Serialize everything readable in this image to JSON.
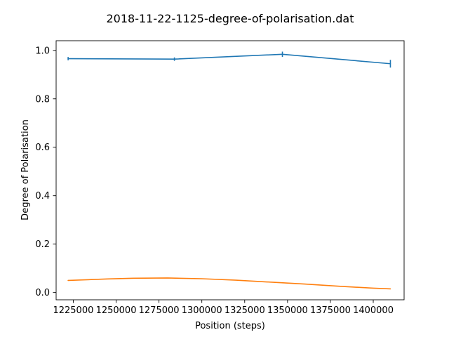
{
  "chart_data": {
    "type": "line",
    "title": "2018-11-22-1125-degree-of-polarisation.dat",
    "xlabel": "Position (steps)",
    "ylabel": "Degree of Polarisation",
    "xlim": [
      1215000,
      1418000
    ],
    "ylim": [
      -0.03,
      1.04
    ],
    "xticks": [
      1225000,
      1250000,
      1275000,
      1300000,
      1325000,
      1350000,
      1375000,
      1400000
    ],
    "xtick_labels": [
      "1225000",
      "1250000",
      "1275000",
      "1300000",
      "1325000",
      "1350000",
      "1375000",
      "1400000"
    ],
    "yticks": [
      0.0,
      0.2,
      0.4,
      0.6,
      0.8,
      1.0
    ],
    "ytick_labels": [
      "0.0",
      "0.2",
      "0.4",
      "0.6",
      "0.8",
      "1.0"
    ],
    "grid": false,
    "legend": null,
    "series": [
      {
        "color": "#1f77b4",
        "style": "line-with-errorbars",
        "x": [
          1222000,
          1284000,
          1347000,
          1410000
        ],
        "y": [
          0.966,
          0.964,
          0.984,
          0.945
        ],
        "yerr": [
          0.007,
          0.007,
          0.011,
          0.016
        ]
      },
      {
        "color": "#ff7f0e",
        "style": "line",
        "x": [
          1222000,
          1245000,
          1260000,
          1280000,
          1300000,
          1320000,
          1340000,
          1360000,
          1380000,
          1400000,
          1410000
        ],
        "y": [
          0.05,
          0.056,
          0.059,
          0.06,
          0.057,
          0.051,
          0.043,
          0.035,
          0.026,
          0.018,
          0.015
        ]
      }
    ]
  }
}
